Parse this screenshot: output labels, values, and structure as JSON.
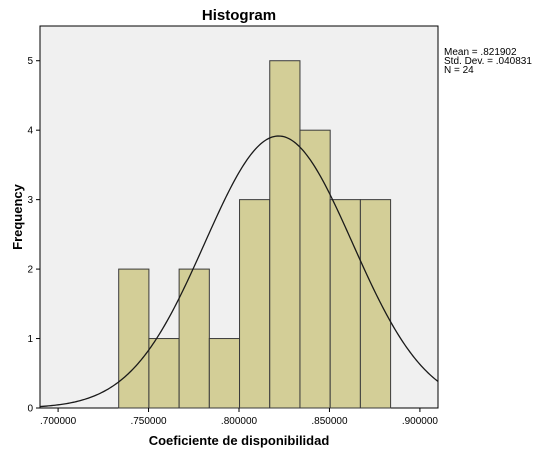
{
  "chart_data": {
    "type": "histogram",
    "title": "Histogram",
    "xlabel": "Coeficiente de disponibilidad",
    "ylabel": "Frequency",
    "xlim": [
      0.69,
      0.91
    ],
    "ylim": [
      0,
      5.5
    ],
    "x_ticks": [
      0.7,
      0.75,
      0.8,
      0.85,
      0.9
    ],
    "x_tick_labels": [
      ".700000",
      ".750000",
      ".800000",
      ".850000",
      ".900000"
    ],
    "y_ticks": [
      0,
      1,
      2,
      3,
      4,
      5
    ],
    "y_tick_labels": [
      "0",
      "1",
      "2",
      "3",
      "4",
      "5"
    ],
    "bin_width": 0.0167,
    "bins": [
      {
        "start": 0.7335,
        "end": 0.7502,
        "count": 2
      },
      {
        "start": 0.7502,
        "end": 0.7669,
        "count": 1
      },
      {
        "start": 0.7669,
        "end": 0.7836,
        "count": 2
      },
      {
        "start": 0.7836,
        "end": 0.8003,
        "count": 1
      },
      {
        "start": 0.8003,
        "end": 0.817,
        "count": 3
      },
      {
        "start": 0.817,
        "end": 0.8337,
        "count": 5
      },
      {
        "start": 0.8337,
        "end": 0.8504,
        "count": 4
      },
      {
        "start": 0.8504,
        "end": 0.8671,
        "count": 3
      },
      {
        "start": 0.8671,
        "end": 0.8838,
        "count": 3
      }
    ],
    "normal_curve": {
      "mean": 0.821902,
      "sd": 0.040831,
      "n": 24
    },
    "stats_lines": [
      "Mean = .821902",
      "Std. Dev. = .040831",
      "N = 24"
    ],
    "colors": {
      "plot_bg": "#f0f0f0",
      "bar_fill": "#d3ce97",
      "bar_stroke": "#3a3a3a",
      "curve": "#1a1a1a"
    },
    "grid": false,
    "legend": "none"
  }
}
